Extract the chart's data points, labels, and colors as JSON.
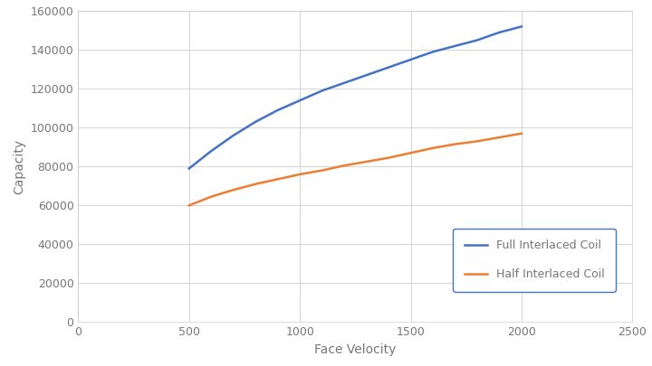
{
  "full_x": [
    500,
    600,
    700,
    800,
    900,
    1000,
    1100,
    1200,
    1300,
    1400,
    1500,
    1600,
    1700,
    1800,
    1900,
    2000
  ],
  "full_y": [
    79000,
    88000,
    96000,
    103000,
    109000,
    114000,
    119000,
    123000,
    127000,
    131000,
    135000,
    139000,
    142000,
    145000,
    149000,
    152000
  ],
  "half_x": [
    500,
    600,
    700,
    800,
    900,
    1000,
    1100,
    1200,
    1300,
    1400,
    1500,
    1600,
    1700,
    1800,
    1900,
    2000
  ],
  "half_y": [
    60000,
    64500,
    68000,
    71000,
    73500,
    76000,
    78000,
    80500,
    82500,
    84500,
    87000,
    89500,
    91500,
    93000,
    95000,
    97000
  ],
  "full_color": "#4472C4",
  "half_color": "#ED7D31",
  "full_label": "Full Interlaced Coil",
  "half_label": "Half Interlaced Coil",
  "xlabel": "Face Velocity",
  "ylabel": "Capacity",
  "xlim": [
    0,
    2500
  ],
  "ylim": [
    0,
    160000
  ],
  "xticks": [
    0,
    500,
    1000,
    1500,
    2000,
    2500
  ],
  "yticks": [
    0,
    20000,
    40000,
    60000,
    80000,
    100000,
    120000,
    140000,
    160000
  ],
  "background_color": "#ffffff",
  "grid_color": "#d3d3d3",
  "line_width": 1.8,
  "legend_edge_color": "#4472C4",
  "label_color": "#777777",
  "tick_label_color": "#777777",
  "xlabel_fontsize": 10,
  "ylabel_fontsize": 10,
  "tick_fontsize": 9
}
